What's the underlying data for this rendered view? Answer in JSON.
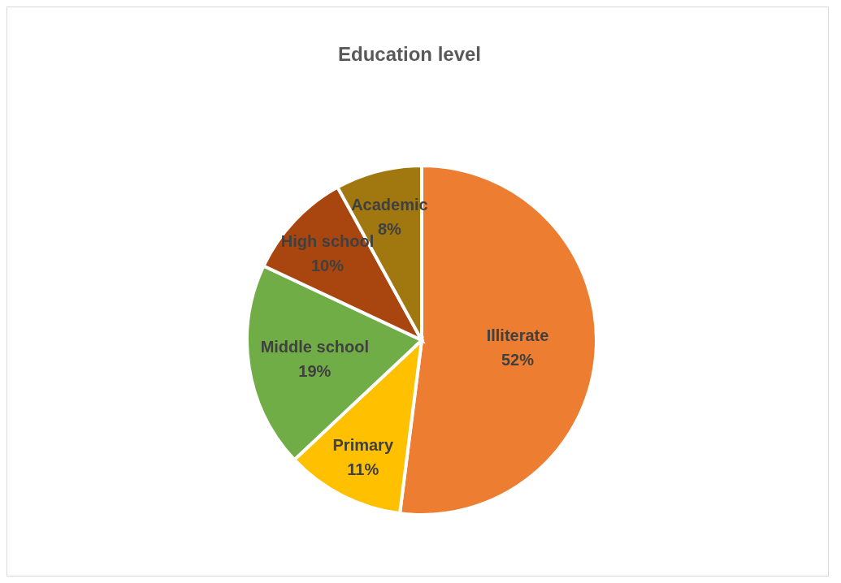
{
  "chart_data": {
    "type": "pie",
    "title": "Education level",
    "categories": [
      "Illiterate",
      "Primary",
      "Middle school",
      "High school",
      "Academic"
    ],
    "values": [
      52,
      11,
      19,
      10,
      8
    ],
    "value_labels": [
      "52%",
      "11%",
      "19%",
      "10%",
      "8%"
    ],
    "colors": [
      "#ed7d31",
      "#ffc000",
      "#70ad47",
      "#a9460f",
      "#a0780f"
    ]
  }
}
